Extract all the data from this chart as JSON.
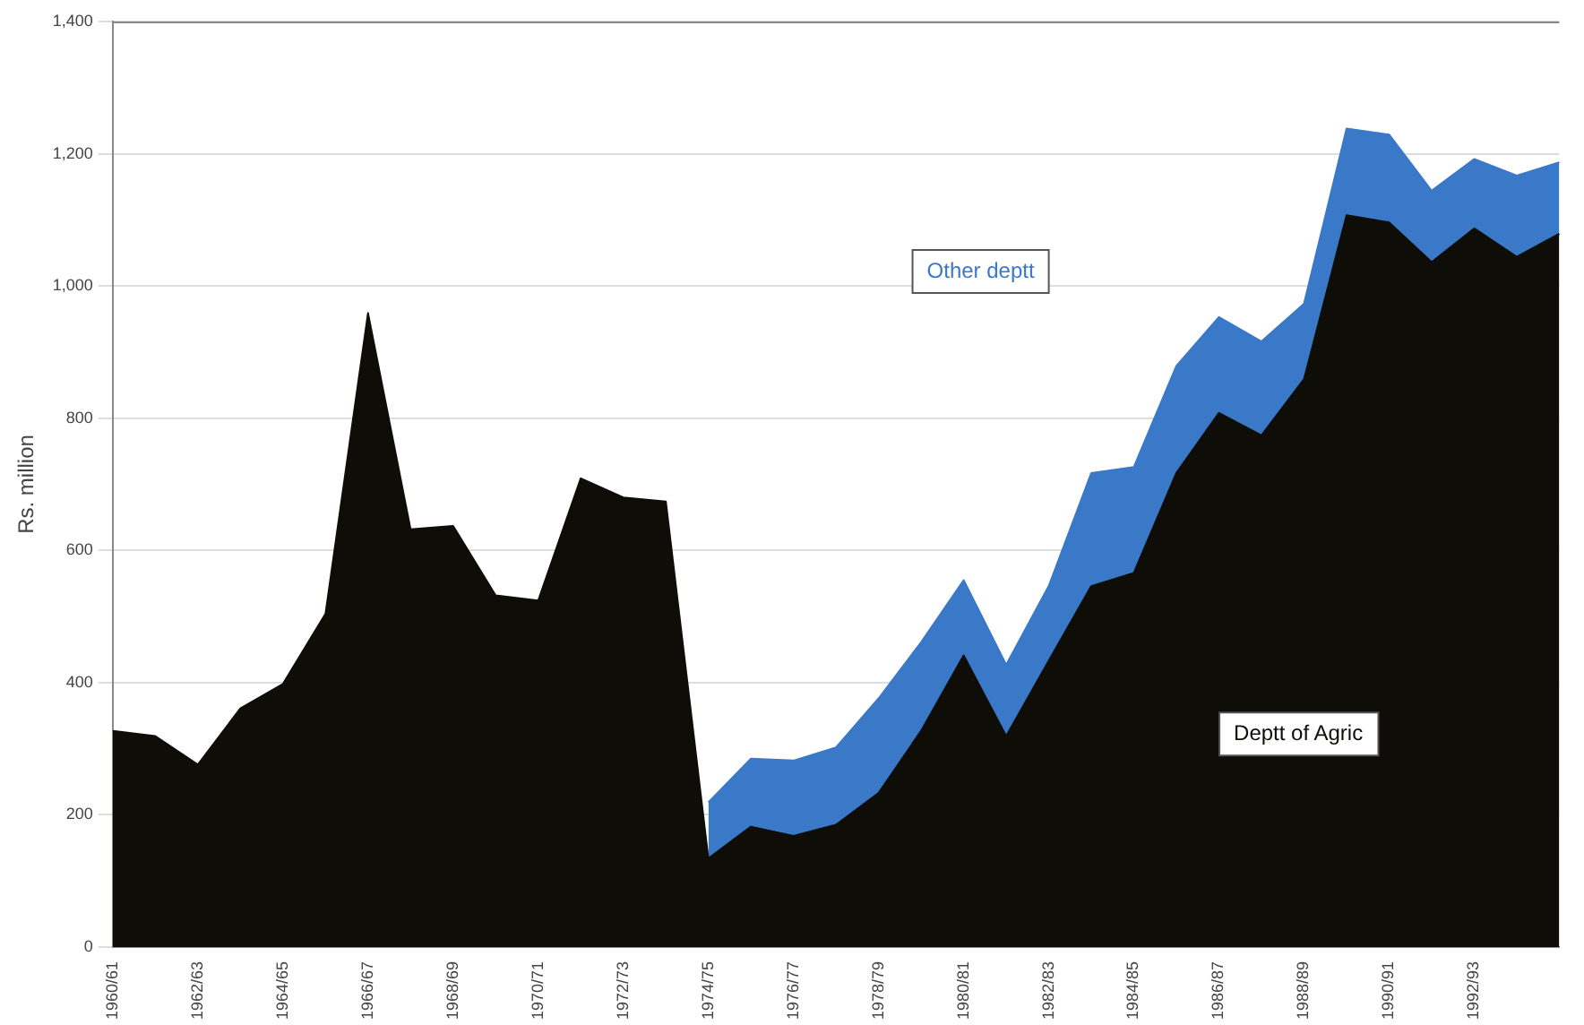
{
  "chart_data": {
    "type": "area",
    "stacked": true,
    "ylabel": "Rs. million",
    "categories": [
      "1960/61",
      null,
      "1962/63",
      null,
      "1964/65",
      null,
      "1966/67",
      null,
      "1968/69",
      null,
      "1970/71",
      null,
      "1972/73",
      null,
      "1974/75",
      null,
      "1976/77",
      null,
      "1978/79",
      null,
      "1980/81",
      null,
      "1982/83",
      null,
      "1984/85",
      null,
      "1986/87",
      null,
      "1988/89",
      null,
      "1990/91",
      null,
      "1992/93",
      null,
      null
    ],
    "series": [
      {
        "name": "Deptt of Agric",
        "color": "#0f0d08",
        "values": [
          327,
          319,
          276,
          361,
          398,
          504,
          959,
          632,
          637,
          532,
          524,
          709,
          680,
          674,
          134,
          182,
          168,
          185,
          233,
          327,
          441,
          319,
          433,
          546,
          566,
          717,
          808,
          774,
          859,
          1107,
          1096,
          1036,
          1087,
          1044,
          1079
        ]
      },
      {
        "name": "Other deptt",
        "color": "#3a78c8",
        "values": [
          null,
          null,
          null,
          null,
          null,
          null,
          null,
          null,
          null,
          null,
          null,
          null,
          null,
          null,
          85,
          103,
          114,
          117,
          143,
          134,
          114,
          108,
          113,
          171,
          160,
          162,
          145,
          142,
          114,
          131,
          133,
          108,
          105,
          123,
          108
        ]
      }
    ],
    "ylim": [
      0,
      1400
    ],
    "yticks": [
      0,
      200,
      400,
      600,
      800,
      {
        "value": 1000,
        "label": "1,000"
      },
      {
        "value": 1200,
        "label": "1,200"
      },
      {
        "value": 1400,
        "label": "1,400"
      }
    ],
    "grid": "y",
    "legend": false
  }
}
